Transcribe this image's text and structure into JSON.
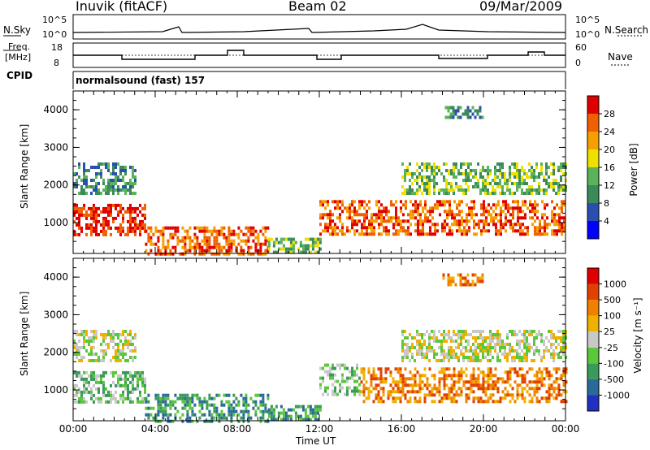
{
  "header": {
    "station": "Inuvik (fitACF)",
    "beam": "Beam 02",
    "date": "09/Mar/2009"
  },
  "top_panels": {
    "nsky_label": "N.Sky",
    "nsky_ticks": [
      "10^5",
      "10^0"
    ],
    "nsearch_label": "N.Search",
    "nsearch_ticks": [
      "10^5",
      "10^0"
    ],
    "freq_label_1": "Freq.",
    "freq_label_2": "[MHz]",
    "freq_ticks": [
      "18",
      "8"
    ],
    "nave_label": "Nave",
    "nave_ticks": [
      "60",
      "0"
    ],
    "cpid_label": "CPID",
    "cpid_value": "normalsound (fast) 157"
  },
  "chart_data": [
    {
      "type": "heatmap",
      "name": "power",
      "ylabel": "Slant Range [km]",
      "yticks": [
        "4000",
        "3000",
        "2000",
        "1000"
      ],
      "ylim": [
        180,
        4500
      ],
      "xlim": [
        0,
        24
      ],
      "colorbar_label": "Power [dB]",
      "colorbar_ticks": [
        "28",
        "24",
        "20",
        "16",
        "12",
        "8",
        "4"
      ],
      "colorbar_colors": [
        "#0000ff",
        "#2a4fb0",
        "#3a8a5a",
        "#5ab35a",
        "#f0e000",
        "#f5a000",
        "#f06000",
        "#e00000"
      ],
      "regions": [
        {
          "t0": 0.0,
          "t1": 3.5,
          "r0": 700,
          "r1": 1500,
          "level": 7
        },
        {
          "t0": 0.0,
          "t1": 3.0,
          "r0": 1800,
          "r1": 2600,
          "level": 2
        },
        {
          "t0": 3.5,
          "t1": 9.5,
          "r0": 200,
          "r1": 900,
          "level": 6
        },
        {
          "t0": 9.5,
          "t1": 12.0,
          "r0": 200,
          "r1": 600,
          "level": 3
        },
        {
          "t0": 12.0,
          "t1": 24.0,
          "r0": 700,
          "r1": 1600,
          "level": 6
        },
        {
          "t0": 16.0,
          "t1": 24.0,
          "r0": 1800,
          "r1": 2600,
          "level": 3
        },
        {
          "t0": 18.0,
          "t1": 20.0,
          "r0": 3800,
          "r1": 4100,
          "level": 2
        }
      ]
    },
    {
      "type": "heatmap",
      "name": "velocity",
      "ylabel": "Slant Range [km]",
      "yticks": [
        "4000",
        "3000",
        "2000",
        "1000"
      ],
      "ylim": [
        180,
        4500
      ],
      "xlim": [
        0,
        24
      ],
      "xticks": [
        "00:00",
        "04:00",
        "08:00",
        "12:00",
        "16:00",
        "20:00",
        "00:00"
      ],
      "xlabel": "Time UT",
      "colorbar_label": "Velocity [m s⁻¹]",
      "colorbar_ticks": [
        "1000",
        "500",
        "100",
        "25",
        "-25",
        "-100",
        "-500",
        "-1000"
      ],
      "colorbar_colors": [
        "#2030c0",
        "#2a6a9a",
        "#3a9a5a",
        "#5ac83a",
        "#c8c8c8",
        "#f0b000",
        "#f08000",
        "#e04000",
        "#e00000"
      ],
      "regions": [
        {
          "t0": 0.0,
          "t1": 3.5,
          "r0": 700,
          "r1": 1500,
          "level": 3
        },
        {
          "t0": 0.0,
          "t1": 3.0,
          "r0": 1800,
          "r1": 2600,
          "level": 4
        },
        {
          "t0": 3.5,
          "t1": 9.5,
          "r0": 200,
          "r1": 900,
          "level": 2
        },
        {
          "t0": 9.5,
          "t1": 12.0,
          "r0": 200,
          "r1": 600,
          "level": 2
        },
        {
          "t0": 12.0,
          "t1": 14.0,
          "r0": 900,
          "r1": 1700,
          "level": 3
        },
        {
          "t0": 14.0,
          "t1": 24.0,
          "r0": 700,
          "r1": 1600,
          "level": 6
        },
        {
          "t0": 16.0,
          "t1": 24.0,
          "r0": 1800,
          "r1": 2600,
          "level": 4
        },
        {
          "t0": 18.0,
          "t1": 20.0,
          "r0": 3800,
          "r1": 4100,
          "level": 6
        }
      ]
    }
  ]
}
